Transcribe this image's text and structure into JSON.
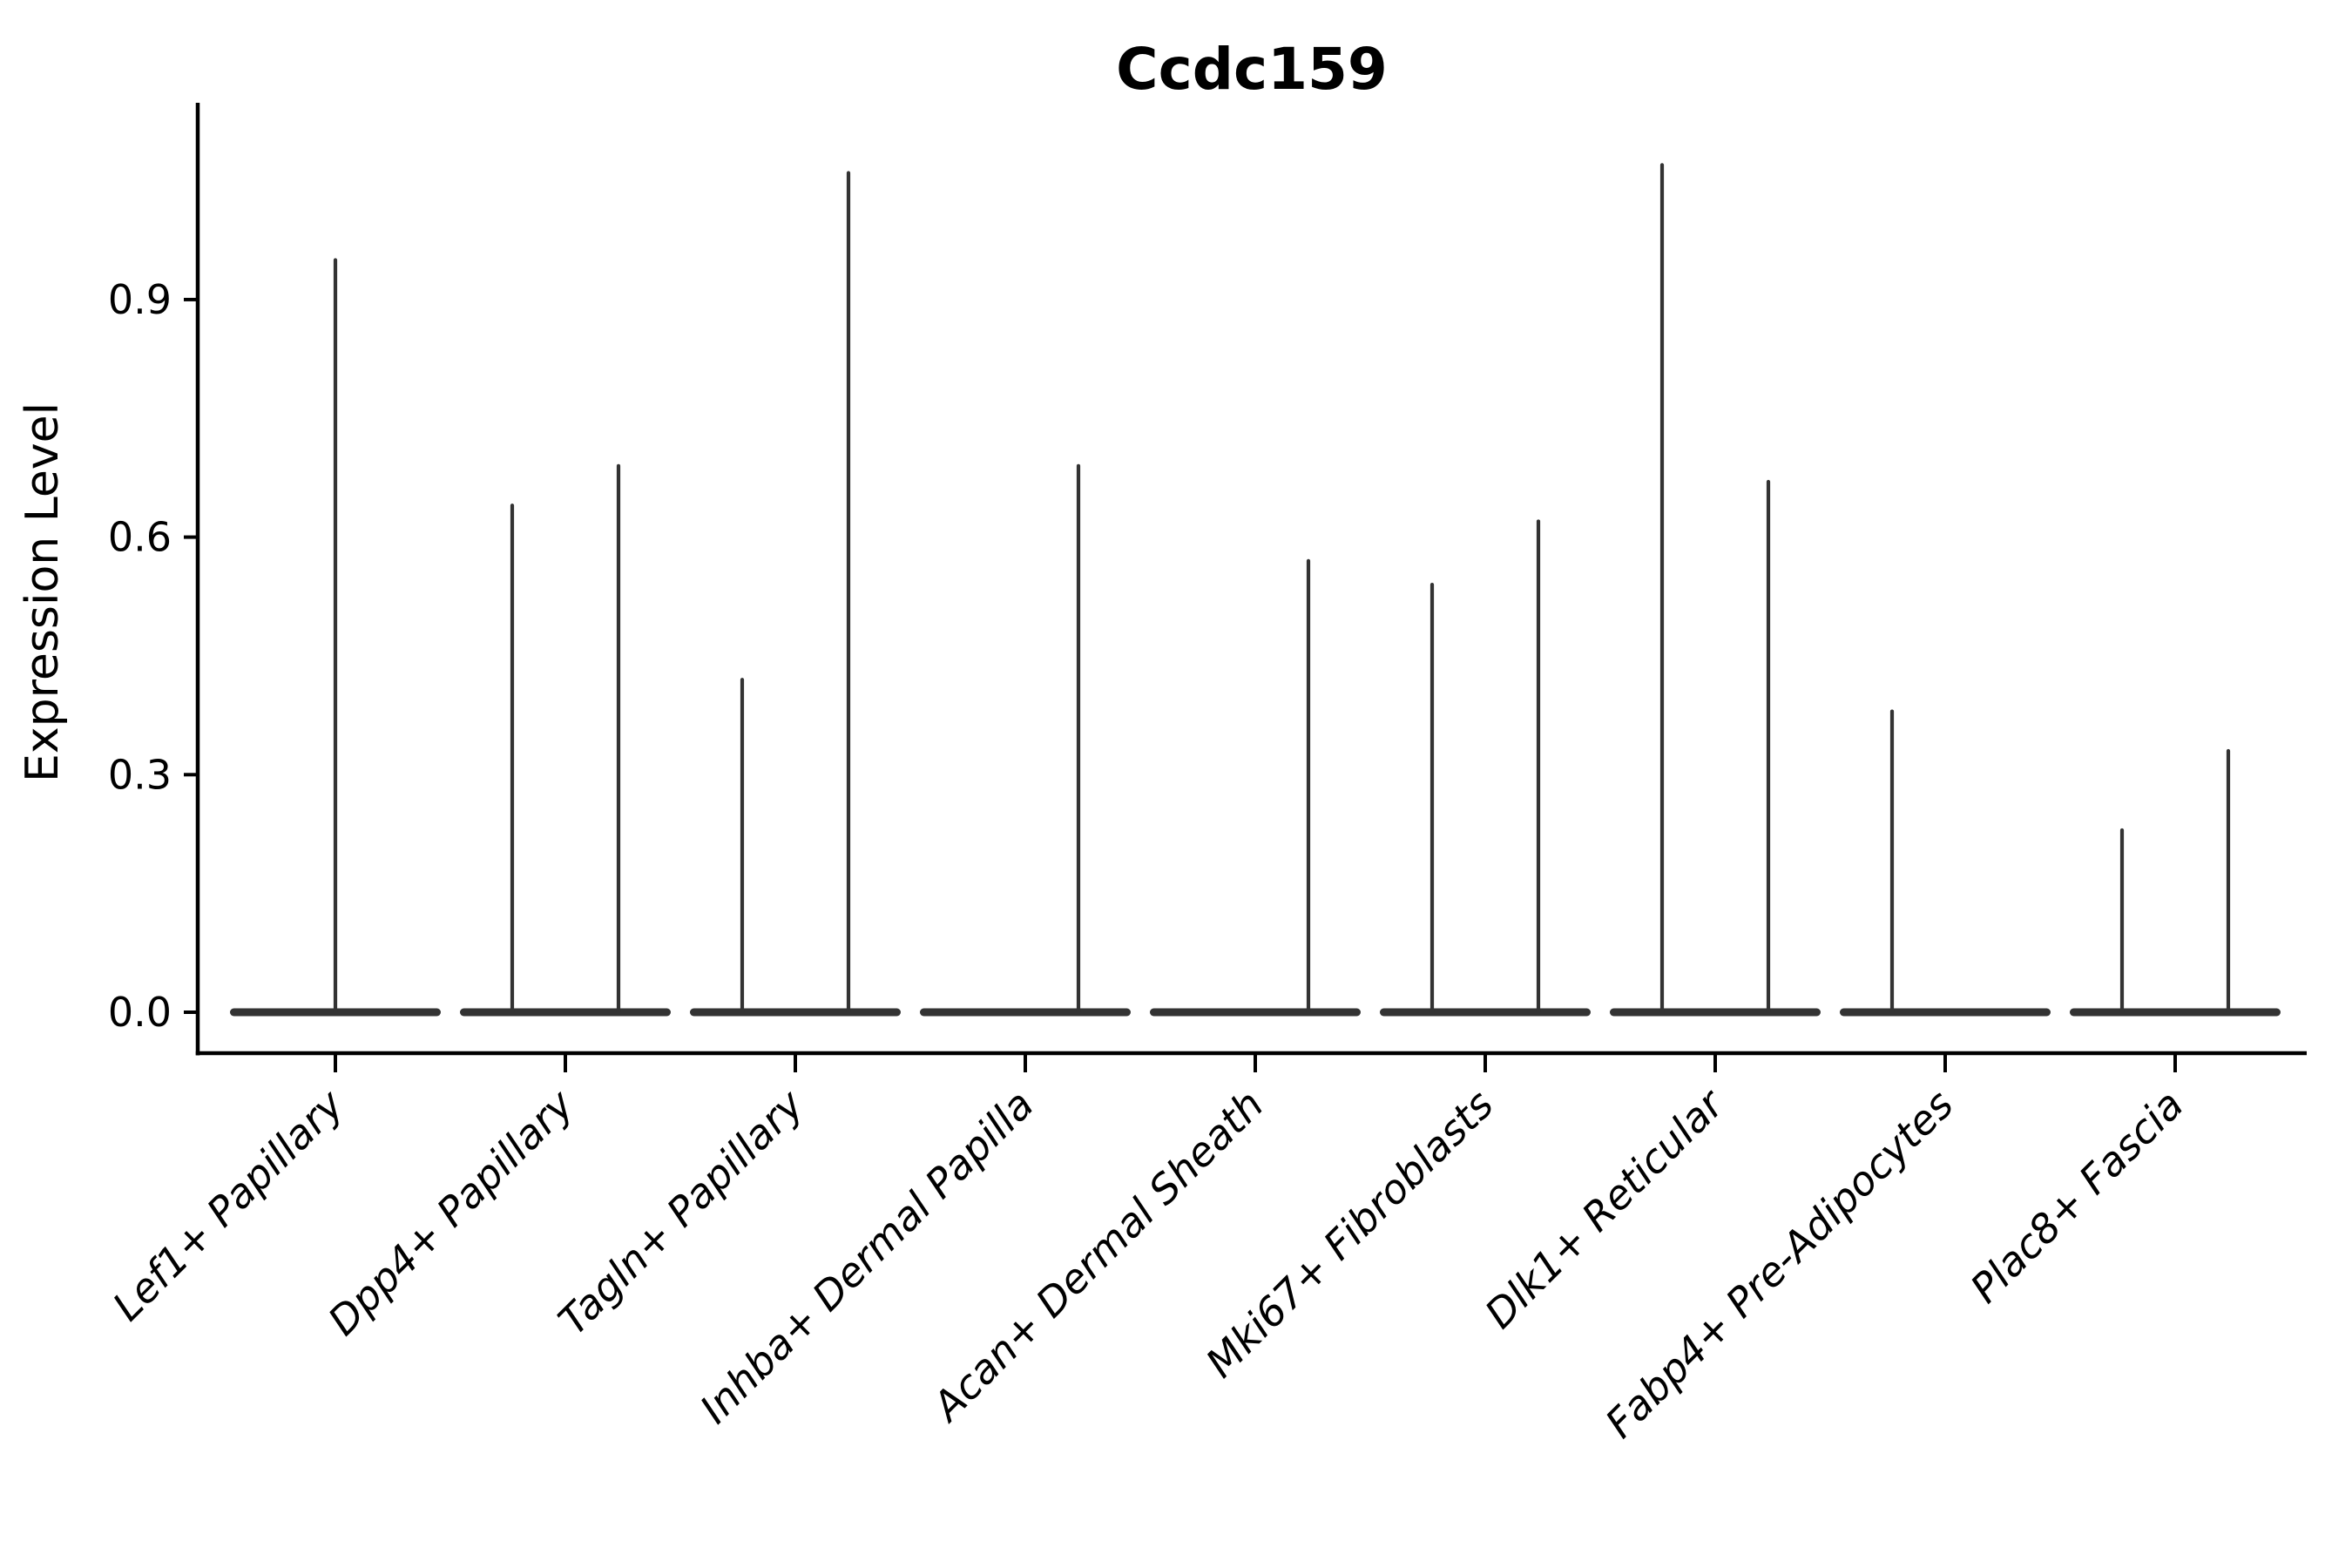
{
  "chart": {
    "title": "Ccdc159",
    "ylabel": "Expression Level"
  },
  "chart_data": {
    "type": "violin",
    "title": "Ccdc159",
    "xlabel": "",
    "ylabel": "Expression Level",
    "grid": false,
    "legend": "none",
    "ylim": [
      -0.05,
      1.15
    ],
    "yticks": [
      "0.0",
      "0.3",
      "0.6",
      "0.9"
    ],
    "ytick_values": [
      0,
      0.3,
      0.6,
      0.9
    ],
    "baseline_value": 0,
    "categories": [
      "Lef1+ Papillary",
      "Dpp4+ Papillary",
      "Tagln+ Papillary",
      "Inhba+ Dermal Papilla",
      "Acan+ Dermal Sheath",
      "Mki67+ Fibroblasts",
      "Dlk1+ Reticular",
      "Fabp4+ Pre-Adipocytes",
      "Plac8+ Fascia"
    ],
    "series": [
      {
        "category": "Lef1+ Papillary",
        "violins": [
          {
            "position": "center",
            "max": 0.95
          }
        ]
      },
      {
        "category": "Dpp4+ Papillary",
        "violins": [
          {
            "position": "left",
            "max": 0.64
          },
          {
            "position": "right",
            "max": 0.69
          }
        ]
      },
      {
        "category": "Tagln+ Papillary",
        "violins": [
          {
            "position": "left",
            "max": 0.42
          },
          {
            "position": "right",
            "max": 1.06
          }
        ]
      },
      {
        "category": "Inhba+ Dermal Papilla",
        "violins": [
          {
            "position": "right",
            "max": 0.69
          }
        ]
      },
      {
        "category": "Acan+ Dermal Sheath",
        "violins": [
          {
            "position": "right",
            "max": 0.57
          }
        ]
      },
      {
        "category": "Mki67+ Fibroblasts",
        "violins": [
          {
            "position": "left",
            "max": 0.54
          },
          {
            "position": "right",
            "max": 0.62
          }
        ]
      },
      {
        "category": "Dlk1+ Reticular",
        "violins": [
          {
            "position": "left",
            "max": 1.07
          },
          {
            "position": "right",
            "max": 0.67
          }
        ]
      },
      {
        "category": "Fabp4+ Pre-Adipocytes",
        "violins": [
          {
            "position": "left",
            "max": 0.38
          }
        ]
      },
      {
        "category": "Plac8+ Fascia",
        "violins": [
          {
            "position": "left",
            "max": 0.23
          },
          {
            "position": "right",
            "max": 0.33
          }
        ]
      }
    ],
    "colors": {
      "violin": "#333333",
      "axis": "#000000",
      "text": "#000000",
      "background": "#ffffff"
    }
  }
}
